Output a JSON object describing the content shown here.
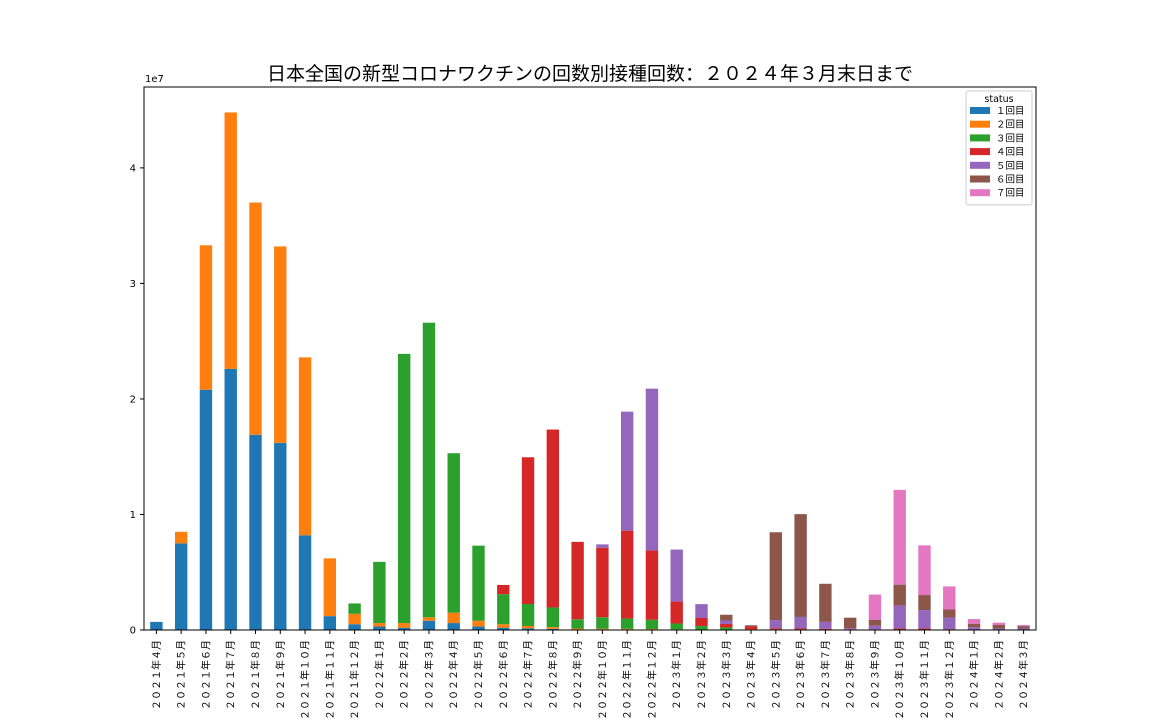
{
  "chart_data": {
    "type": "bar",
    "stacked": true,
    "title": "日本全国の新型コロナワクチンの回数別接種回数：２０２４年３月末日まで",
    "xlabel": "",
    "ylabel": "",
    "y_offset_label": "1e7",
    "ylim": [
      0,
      47000000
    ],
    "yticks": [
      0,
      10000000,
      20000000,
      30000000,
      40000000
    ],
    "ytick_labels": [
      "0",
      "1",
      "2",
      "3",
      "4"
    ],
    "legend": {
      "title": "status",
      "placement": "top-right"
    },
    "categories": [
      "２０２１年４月",
      "２０２１年５月",
      "２０２１年６月",
      "２０２１年７月",
      "２０２１年８月",
      "２０２１年９月",
      "２０２１年１０月",
      "２０２１年１１月",
      "２０２１年１２月",
      "２０２２年１月",
      "２０２２年２月",
      "２０２２年３月",
      "２０２２年４月",
      "２０２２年５月",
      "２０２２年６月",
      "２０２２年７月",
      "２０２２年８月",
      "２０２２年９月",
      "２０２２年１０月",
      "２０２２年１１月",
      "２０２２年１２月",
      "２０２３年１月",
      "２０２３年２月",
      "２０２３年３月",
      "２０２３年４月",
      "２０２３年５月",
      "２０２３年６月",
      "２０２３年７月",
      "２０２３年８月",
      "２０２３年９月",
      "２０２３年１０月",
      "２０２３年１１月",
      "２０２３年１２月",
      "２０２４年１月",
      "２０２４年２月",
      "２０２４年３月"
    ],
    "series": [
      {
        "name": "１回目",
        "color": "#1f77b4",
        "values": [
          700000,
          7500000,
          20800000,
          22600000,
          16900000,
          16200000,
          8200000,
          1200000,
          500000,
          300000,
          200000,
          800000,
          600000,
          300000,
          200000,
          150000,
          100000,
          50000,
          50000,
          50000,
          50000,
          30000,
          20000,
          10000,
          5000,
          5000,
          5000,
          5000,
          3000,
          3000,
          3000,
          3000,
          2000,
          2000,
          2000,
          2000
        ]
      },
      {
        "name": "２回目",
        "color": "#ff7f0e",
        "values": [
          0,
          1000000,
          12500000,
          22200000,
          20100000,
          17000000,
          15400000,
          5000000,
          900000,
          300000,
          400000,
          300000,
          900000,
          500000,
          300000,
          200000,
          150000,
          80000,
          60000,
          50000,
          40000,
          30000,
          20000,
          10000,
          5000,
          5000,
          5000,
          5000,
          3000,
          3000,
          3000,
          3000,
          2000,
          2000,
          2000,
          2000
        ]
      },
      {
        "name": "３回目",
        "color": "#2ca02c",
        "values": [
          0,
          0,
          0,
          0,
          0,
          0,
          0,
          0,
          900000,
          5300000,
          23300000,
          25500000,
          13800000,
          6500000,
          2600000,
          1900000,
          1700000,
          800000,
          1000000,
          900000,
          800000,
          500000,
          300000,
          200000,
          50000,
          50000,
          40000,
          30000,
          20000,
          20000,
          20000,
          20000,
          20000,
          10000,
          10000,
          10000
        ]
      },
      {
        "name": "４回目",
        "color": "#d62728",
        "values": [
          0,
          0,
          0,
          0,
          0,
          0,
          0,
          0,
          0,
          0,
          0,
          0,
          0,
          0,
          800000,
          12700000,
          15400000,
          6700000,
          6000000,
          7600000,
          6000000,
          1900000,
          700000,
          300000,
          250000,
          100000,
          80000,
          60000,
          40000,
          40000,
          100000,
          100000,
          50000,
          30000,
          20000,
          20000
        ]
      },
      {
        "name": "５回目",
        "color": "#9467bd",
        "values": [
          0,
          0,
          0,
          0,
          0,
          0,
          0,
          0,
          0,
          0,
          0,
          0,
          0,
          0,
          0,
          0,
          0,
          0,
          300000,
          10300000,
          14000000,
          4500000,
          1200000,
          300000,
          0,
          700000,
          1000000,
          600000,
          100000,
          300000,
          2000000,
          1600000,
          1000000,
          200000,
          100000,
          100000
        ]
      },
      {
        "name": "６回目",
        "color": "#8c564b",
        "values": [
          0,
          0,
          0,
          0,
          0,
          0,
          0,
          0,
          0,
          0,
          0,
          0,
          0,
          0,
          0,
          0,
          0,
          0,
          0,
          0,
          0,
          0,
          0,
          500000,
          100000,
          7600000,
          8900000,
          3300000,
          900000,
          500000,
          1800000,
          1300000,
          700000,
          300000,
          300000,
          200000
        ]
      },
      {
        "name": "７回目",
        "color": "#e377c2",
        "values": [
          0,
          0,
          0,
          0,
          0,
          0,
          0,
          0,
          0,
          0,
          0,
          0,
          0,
          0,
          0,
          0,
          0,
          0,
          0,
          0,
          0,
          0,
          0,
          0,
          0,
          0,
          0,
          0,
          0,
          2200000,
          8200000,
          4300000,
          2000000,
          400000,
          200000,
          100000
        ]
      }
    ]
  }
}
